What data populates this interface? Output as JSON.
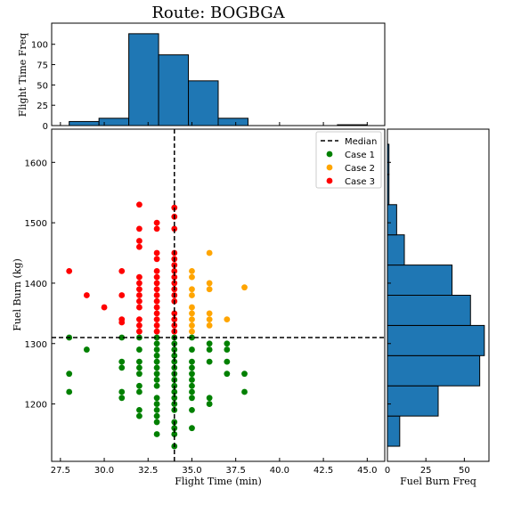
{
  "chart_data": [
    {
      "panel": "main-scatter",
      "type": "scatter",
      "title": "Route: BOGBGA",
      "xlabel": "Flight Time (min)",
      "ylabel": "Fuel Burn (kg)",
      "xlim": [
        27,
        46
      ],
      "ylim": [
        1105,
        1655
      ],
      "xticks": [
        "27.5",
        "30.0",
        "32.5",
        "35.0",
        "37.5",
        "40.0",
        "42.5",
        "45.0"
      ],
      "xtick_values": [
        27.5,
        30.0,
        32.5,
        35.0,
        37.5,
        40.0,
        42.5,
        45.0
      ],
      "yticks": [
        "1200",
        "1300",
        "1400",
        "1500",
        "1600"
      ],
      "ytick_values": [
        1200,
        1300,
        1400,
        1500,
        1600
      ],
      "median": {
        "label": "Median",
        "x": 34,
        "y": 1310,
        "color": "#000000"
      },
      "legend_position": "upper right",
      "series": [
        {
          "name": "Case 1",
          "color": "#008000",
          "points": [
            [
              28,
              1310
            ],
            [
              28,
              1250
            ],
            [
              28,
              1220
            ],
            [
              29,
              1290
            ],
            [
              31,
              1310
            ],
            [
              31,
              1270
            ],
            [
              31,
              1260
            ],
            [
              31,
              1220
            ],
            [
              31,
              1210
            ],
            [
              32,
              1310
            ],
            [
              32,
              1290
            ],
            [
              32,
              1270
            ],
            [
              32,
              1260
            ],
            [
              32,
              1250
            ],
            [
              32,
              1230
            ],
            [
              32,
              1220
            ],
            [
              32,
              1190
            ],
            [
              32,
              1180
            ],
            [
              33,
              1310
            ],
            [
              33,
              1300
            ],
            [
              33,
              1290
            ],
            [
              33,
              1280
            ],
            [
              33,
              1270
            ],
            [
              33,
              1260
            ],
            [
              33,
              1250
            ],
            [
              33,
              1240
            ],
            [
              33,
              1230
            ],
            [
              33,
              1210
            ],
            [
              33,
              1200
            ],
            [
              33,
              1190
            ],
            [
              33,
              1180
            ],
            [
              33,
              1170
            ],
            [
              33,
              1150
            ],
            [
              34,
              1310
            ],
            [
              34,
              1300
            ],
            [
              34,
              1290
            ],
            [
              34,
              1280
            ],
            [
              34,
              1270
            ],
            [
              34,
              1260
            ],
            [
              34,
              1250
            ],
            [
              34,
              1240
            ],
            [
              34,
              1230
            ],
            [
              34,
              1220
            ],
            [
              34,
              1210
            ],
            [
              34,
              1200
            ],
            [
              34,
              1190
            ],
            [
              34,
              1170
            ],
            [
              34,
              1160
            ],
            [
              34,
              1150
            ],
            [
              34,
              1130
            ],
            [
              35,
              1310
            ],
            [
              35,
              1290
            ],
            [
              35,
              1270
            ],
            [
              35,
              1260
            ],
            [
              35,
              1250
            ],
            [
              35,
              1240
            ],
            [
              35,
              1230
            ],
            [
              35,
              1220
            ],
            [
              35,
              1210
            ],
            [
              35,
              1190
            ],
            [
              35,
              1160
            ],
            [
              36,
              1300
            ],
            [
              36,
              1290
            ],
            [
              36,
              1270
            ],
            [
              36,
              1210
            ],
            [
              36,
              1200
            ],
            [
              37,
              1300
            ],
            [
              37,
              1290
            ],
            [
              37,
              1270
            ],
            [
              37,
              1250
            ],
            [
              38,
              1250
            ],
            [
              38,
              1220
            ]
          ]
        },
        {
          "name": "Case 2",
          "color": "#ffa500",
          "points": [
            [
              35,
              1420
            ],
            [
              35,
              1410
            ],
            [
              35,
              1390
            ],
            [
              35,
              1380
            ],
            [
              35,
              1360
            ],
            [
              35,
              1350
            ],
            [
              35,
              1340
            ],
            [
              35,
              1330
            ],
            [
              35,
              1320
            ],
            [
              36,
              1450
            ],
            [
              36,
              1400
            ],
            [
              36,
              1390
            ],
            [
              36,
              1350
            ],
            [
              36,
              1340
            ],
            [
              36,
              1330
            ],
            [
              37,
              1340
            ],
            [
              38,
              1393
            ],
            [
              45,
              1630
            ]
          ]
        },
        {
          "name": "Case 3",
          "color": "#ff0000",
          "points": [
            [
              28,
              1420
            ],
            [
              29,
              1380
            ],
            [
              30,
              1360
            ],
            [
              31,
              1420
            ],
            [
              31,
              1380
            ],
            [
              31,
              1340
            ],
            [
              31,
              1335
            ],
            [
              32,
              1530
            ],
            [
              32,
              1490
            ],
            [
              32,
              1470
            ],
            [
              32,
              1460
            ],
            [
              32,
              1410
            ],
            [
              32,
              1400
            ],
            [
              32,
              1390
            ],
            [
              32,
              1380
            ],
            [
              32,
              1370
            ],
            [
              32,
              1360
            ],
            [
              32,
              1340
            ],
            [
              32,
              1330
            ],
            [
              32,
              1320
            ],
            [
              33,
              1500
            ],
            [
              33,
              1490
            ],
            [
              33,
              1450
            ],
            [
              33,
              1440
            ],
            [
              33,
              1420
            ],
            [
              33,
              1410
            ],
            [
              33,
              1400
            ],
            [
              33,
              1390
            ],
            [
              33,
              1380
            ],
            [
              33,
              1370
            ],
            [
              33,
              1360
            ],
            [
              33,
              1350
            ],
            [
              33,
              1340
            ],
            [
              33,
              1330
            ],
            [
              33,
              1320
            ],
            [
              34,
              1525
            ],
            [
              34,
              1510
            ],
            [
              34,
              1490
            ],
            [
              34,
              1450
            ],
            [
              34,
              1440
            ],
            [
              34,
              1430
            ],
            [
              34,
              1420
            ],
            [
              34,
              1410
            ],
            [
              34,
              1400
            ],
            [
              34,
              1390
            ],
            [
              34,
              1380
            ],
            [
              34,
              1370
            ],
            [
              34,
              1350
            ],
            [
              34,
              1340
            ],
            [
              34,
              1330
            ],
            [
              34,
              1320
            ]
          ]
        }
      ]
    },
    {
      "panel": "top-histogram",
      "type": "bar",
      "ylabel": "Flight Time Freq",
      "xlim": [
        27,
        46
      ],
      "ylim": [
        0,
        126
      ],
      "yticks": [
        "0",
        "25",
        "50",
        "75",
        "100"
      ],
      "ytick_values": [
        0,
        25,
        50,
        75,
        100
      ],
      "color": "#1f77b4",
      "bins": [
        {
          "from": 28.0,
          "to": 29.7,
          "value": 5
        },
        {
          "from": 29.7,
          "to": 31.4,
          "value": 9
        },
        {
          "from": 31.4,
          "to": 33.1,
          "value": 113
        },
        {
          "from": 33.1,
          "to": 34.8,
          "value": 87
        },
        {
          "from": 34.8,
          "to": 36.5,
          "value": 55
        },
        {
          "from": 36.5,
          "to": 38.2,
          "value": 9
        },
        {
          "from": 38.2,
          "to": 39.9,
          "value": 0
        },
        {
          "from": 39.9,
          "to": 41.6,
          "value": 0
        },
        {
          "from": 41.6,
          "to": 43.3,
          "value": 0
        },
        {
          "from": 43.3,
          "to": 45.0,
          "value": 1
        }
      ]
    },
    {
      "panel": "right-histogram",
      "type": "bar",
      "orientation": "horizontal",
      "xlabel": "Fuel Burn Freq",
      "xlim": [
        0,
        66
      ],
      "xticks": [
        "0",
        "25",
        "50"
      ],
      "xtick_values": [
        0,
        25,
        50
      ],
      "color": "#1f77b4",
      "bins": [
        {
          "from": 1130,
          "to": 1180,
          "value": 8
        },
        {
          "from": 1180,
          "to": 1230,
          "value": 33
        },
        {
          "from": 1230,
          "to": 1280,
          "value": 60
        },
        {
          "from": 1280,
          "to": 1330,
          "value": 63
        },
        {
          "from": 1330,
          "to": 1380,
          "value": 54
        },
        {
          "from": 1380,
          "to": 1430,
          "value": 42
        },
        {
          "from": 1430,
          "to": 1480,
          "value": 11
        },
        {
          "from": 1480,
          "to": 1530,
          "value": 6
        },
        {
          "from": 1530,
          "to": 1580,
          "value": 1
        },
        {
          "from": 1580,
          "to": 1630,
          "value": 1
        }
      ]
    }
  ]
}
